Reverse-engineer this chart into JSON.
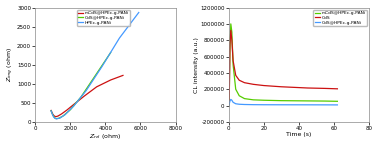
{
  "left": {
    "xlabel": "Z_rel (ohm)",
    "ylabel": "Z_img (ohm)",
    "xlim": [
      0,
      8000
    ],
    "ylim": [
      0,
      3000
    ],
    "xticks": [
      0,
      2000,
      4000,
      6000,
      8000
    ],
    "yticks": [
      0,
      500,
      1000,
      1500,
      2000,
      2500,
      3000
    ],
    "series": [
      {
        "label": "mCdS@HPEc-g-PANi",
        "color": "#cc1111",
        "x": [
          900,
          950,
          1000,
          1050,
          1100,
          1150,
          1200,
          1300,
          1500,
          1800,
          2200,
          2800,
          3500,
          4300,
          5000
        ],
        "y": [
          300,
          250,
          200,
          170,
          150,
          140,
          140,
          155,
          210,
          310,
          460,
          680,
          920,
          1100,
          1220
        ]
      },
      {
        "label": "CdS@HPEc-g-PANi",
        "color": "#55cc00",
        "x": [
          900,
          950,
          1000,
          1050,
          1100,
          1150,
          1200,
          1350,
          1600,
          2000,
          2600,
          3400,
          4300
        ],
        "y": [
          290,
          230,
          180,
          140,
          110,
          90,
          85,
          95,
          160,
          320,
          650,
          1200,
          1820
        ]
      },
      {
        "label": "HPEc-g-PANi",
        "color": "#4499ff",
        "x": [
          900,
          950,
          1000,
          1050,
          1100,
          1200,
          1400,
          1700,
          2200,
          2900,
          3800,
          4800,
          5900
        ],
        "y": [
          290,
          230,
          170,
          130,
          100,
          80,
          100,
          190,
          420,
          820,
          1450,
          2200,
          2870
        ]
      }
    ]
  },
  "right": {
    "xlabel": "Time (s)",
    "ylabel": "CL intensity (a.u.)",
    "xlim": [
      0,
      80
    ],
    "ylim": [
      -200000,
      1200000
    ],
    "xticks": [
      0,
      20,
      40,
      60,
      80
    ],
    "yticks": [
      -200000,
      0,
      200000,
      400000,
      600000,
      800000,
      1000000,
      1200000
    ],
    "series": [
      {
        "label": "mCdS@HPEc-g-PANi",
        "color": "#55cc00",
        "x": [
          0,
          0.3,
          0.7,
          1.2,
          1.8,
          2.5,
          4.0,
          6.0,
          9.0,
          14.0,
          20.0,
          30.0,
          45.0,
          55.0,
          62.0
        ],
        "y": [
          0,
          80000,
          700000,
          1000000,
          900000,
          500000,
          200000,
          120000,
          85000,
          70000,
          65000,
          60000,
          57000,
          55000,
          52000
        ]
      },
      {
        "label": "CdS",
        "color": "#cc1111",
        "x": [
          0,
          0.3,
          0.7,
          1.2,
          1.8,
          2.5,
          4.0,
          6.0,
          9.0,
          14.0,
          20.0,
          30.0,
          45.0,
          55.0,
          62.0
        ],
        "y": [
          0,
          100000,
          750000,
          920000,
          800000,
          550000,
          370000,
          310000,
          280000,
          260000,
          245000,
          230000,
          215000,
          210000,
          205000
        ]
      },
      {
        "label": "CdS@HPEc-g-PANi",
        "color": "#4499ff",
        "x": [
          0,
          0.3,
          0.7,
          1.2,
          1.8,
          2.5,
          4.0,
          6.0,
          9.0,
          14.0,
          20.0,
          30.0,
          45.0,
          55.0,
          62.0
        ],
        "y": [
          0,
          20000,
          55000,
          75000,
          65000,
          40000,
          22000,
          16000,
          13000,
          11000,
          10000,
          9500,
          9000,
          8500,
          8000
        ]
      }
    ]
  }
}
